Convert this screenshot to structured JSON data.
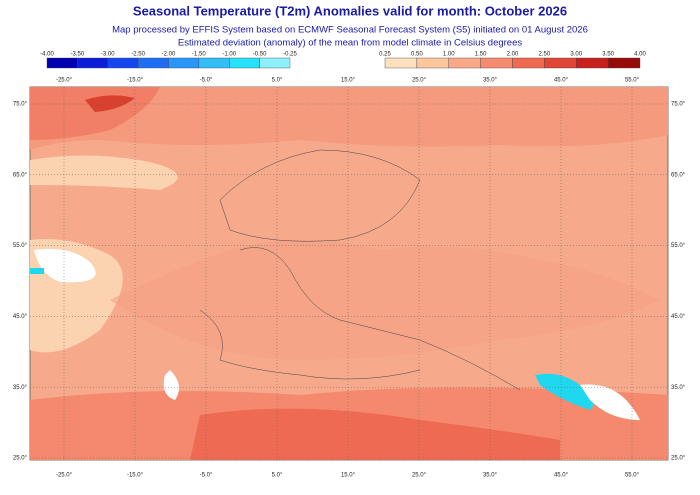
{
  "title": "Seasonal Temperature (T2m) Anomalies valid for month: October 2026",
  "subtitle_lines": [
    "Map processed by EFFIS System based on ECMWF Seasonal Forecast System (S5) initiated on 01 August 2026",
    "Estimated deviation (anomaly) of the mean from model climate in Celsius degrees"
  ],
  "colorbar_negative": {
    "labels": [
      "-4.00",
      "-3.50",
      "-3.00",
      "-2.50",
      "-2.00",
      "-1.50",
      "-1.00",
      "-0.50",
      "-0.25"
    ]
  },
  "colorbar_positive": {
    "labels": [
      "0.25",
      "0.50",
      "1.00",
      "1.50",
      "2.00",
      "2.50",
      "3.00",
      "3.50",
      "4.00"
    ]
  },
  "longitude_labels": [
    "-25.0°",
    "-15.0°",
    "-5.0°",
    "5.0°",
    "15.0°",
    "25.0°",
    "35.0°",
    "45.0°",
    "55.0°"
  ],
  "latitude_labels": [
    "75.0°",
    "65.0°",
    "55.0°",
    "45.0°",
    "35.0°",
    "25.0°"
  ]
}
